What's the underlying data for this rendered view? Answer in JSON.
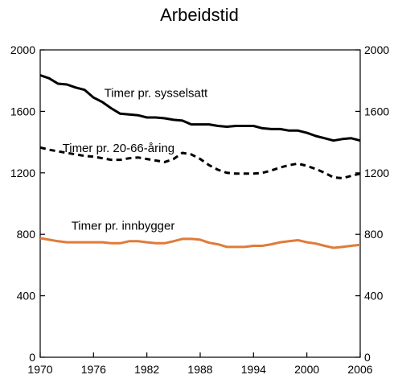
{
  "chart_data": {
    "type": "line",
    "title": "Arbeidstid",
    "xlabel": "",
    "ylabel": "",
    "xlim": [
      1970,
      2006
    ],
    "ylim": [
      0,
      2000
    ],
    "x_ticks": [
      "1970",
      "1976",
      "1982",
      "1988",
      "1994",
      "2000",
      "2006"
    ],
    "y_ticks": [
      "0",
      "400",
      "800",
      "1200",
      "1600",
      "2000"
    ],
    "y_ticks_right": [
      "0",
      "400",
      "800",
      "1200",
      "1600",
      "2000"
    ],
    "grid": false,
    "legend": "none",
    "x": [
      1970,
      1971,
      1972,
      1973,
      1974,
      1975,
      1976,
      1977,
      1978,
      1979,
      1980,
      1981,
      1982,
      1983,
      1984,
      1985,
      1986,
      1987,
      1988,
      1989,
      1990,
      1991,
      1992,
      1993,
      1994,
      1995,
      1996,
      1997,
      1998,
      1999,
      2000,
      2001,
      2002,
      2003,
      2004,
      2005,
      2006
    ],
    "series": [
      {
        "name": "Timer pr. sysselsatt",
        "color": "#000000",
        "dash": "solid",
        "values": [
          1835,
          1815,
          1780,
          1775,
          1755,
          1740,
          1690,
          1660,
          1620,
          1585,
          1580,
          1575,
          1560,
          1560,
          1555,
          1545,
          1540,
          1515,
          1515,
          1515,
          1505,
          1500,
          1505,
          1505,
          1505,
          1490,
          1485,
          1485,
          1475,
          1475,
          1460,
          1440,
          1425,
          1410,
          1420,
          1425,
          1410
        ]
      },
      {
        "name": "Timer pr. 20-66-åring",
        "color": "#000000",
        "dash": "dashed",
        "values": [
          1365,
          1350,
          1340,
          1330,
          1320,
          1310,
          1305,
          1295,
          1285,
          1285,
          1295,
          1300,
          1290,
          1280,
          1270,
          1290,
          1330,
          1320,
          1290,
          1250,
          1220,
          1200,
          1195,
          1195,
          1195,
          1200,
          1215,
          1235,
          1250,
          1260,
          1245,
          1225,
          1200,
          1170,
          1165,
          1180,
          1195
        ]
      },
      {
        "name": "Timer pr. innbygger",
        "color": "#e07b39",
        "dash": "solid",
        "values": [
          775,
          765,
          755,
          748,
          748,
          748,
          748,
          748,
          742,
          742,
          755,
          755,
          748,
          742,
          742,
          755,
          770,
          770,
          765,
          745,
          735,
          718,
          718,
          718,
          725,
          725,
          735,
          748,
          755,
          762,
          748,
          740,
          725,
          712,
          718,
          725,
          732
        ]
      }
    ],
    "annotations": [
      {
        "text": "Timer pr. sysselsatt",
        "x": 1977.2,
        "y": 1695
      },
      {
        "text": "Timer pr. 20-66-åring",
        "x": 1972.5,
        "y": 1335
      },
      {
        "text": "Timer pr. innbygger",
        "x": 1973.5,
        "y": 830
      }
    ]
  }
}
